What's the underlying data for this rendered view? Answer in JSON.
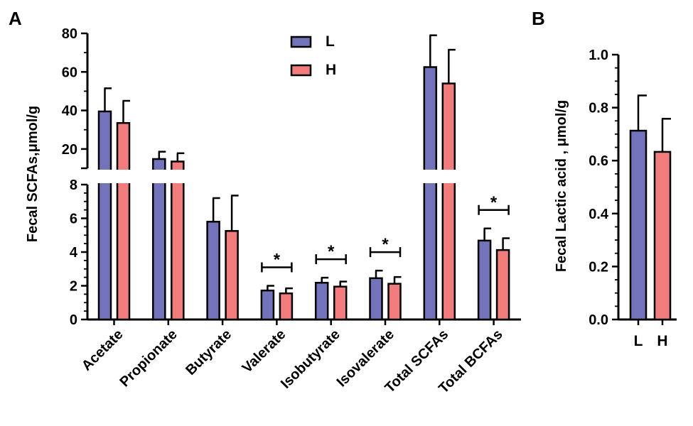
{
  "panel_a_label": "A",
  "panel_b_label": "B",
  "chart_data": [
    {
      "id": "A",
      "type": "bar",
      "ylabel": "Fecal SCFAs,μmol/g",
      "categories": [
        "Acetate",
        "Propionate",
        "Butyrate",
        "Valerate",
        "Isobutyrate",
        "Isovalerate",
        "Total SCFAs",
        "Total BCFAs"
      ],
      "series": [
        {
          "name": "L",
          "color": "#7373bb",
          "values": [
            39.5,
            14.8,
            5.8,
            1.72,
            2.18,
            2.45,
            62.5,
            4.68
          ],
          "errors": [
            12.0,
            3.8,
            1.4,
            0.28,
            0.3,
            0.45,
            16.5,
            0.72
          ]
        },
        {
          "name": "H",
          "color": "#f27b7b",
          "values": [
            33.5,
            13.5,
            5.25,
            1.55,
            1.95,
            2.12,
            54.0,
            4.12
          ],
          "errors": [
            11.5,
            4.3,
            2.1,
            0.3,
            0.3,
            0.4,
            17.5,
            0.7
          ]
        }
      ],
      "y_lower_segment": {
        "range": [
          0,
          8
        ],
        "ticks": [
          "0",
          "2",
          "4",
          "6",
          "8"
        ]
      },
      "y_upper_segment": {
        "range": [
          10,
          80
        ],
        "ticks": [
          "20",
          "40",
          "60",
          "80"
        ]
      },
      "significance": [
        {
          "category": "Valerate",
          "label": "*"
        },
        {
          "category": "Isobutyrate",
          "label": "*"
        },
        {
          "category": "Isovalerate",
          "label": "*"
        },
        {
          "category": "Total BCFAs",
          "label": "*"
        }
      ],
      "legend": {
        "position": "top-center",
        "entries": [
          "L",
          "H"
        ]
      }
    },
    {
      "id": "B",
      "type": "bar",
      "ylabel": "Fecal Lactic acid , μmol/g",
      "categories": [
        "L",
        "H"
      ],
      "values": [
        0.713,
        0.633
      ],
      "errors": [
        0.133,
        0.125
      ],
      "colors": [
        "#7373bb",
        "#f27b7b"
      ],
      "ylim": [
        0,
        1.0
      ],
      "yticks": [
        "0.0",
        "0.2",
        "0.4",
        "0.6",
        "0.8",
        "1.0"
      ]
    }
  ]
}
